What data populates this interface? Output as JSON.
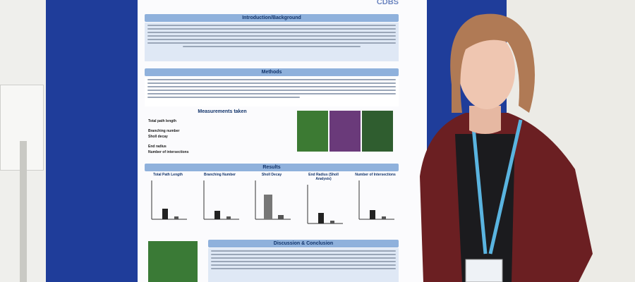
{
  "poster": {
    "logo": "CDBS",
    "sections": {
      "intro": "Introduction/Background",
      "methods": "Methods",
      "results": "Results",
      "discussion": "Discussion & Conclusion"
    },
    "measurements": {
      "title": "Measurements taken",
      "items": [
        "Total path length",
        "Branching number",
        "Sholl decay",
        "End radius",
        "Number of intersections"
      ]
    },
    "charts": [
      "Total Path Length",
      "Branching Number",
      "Sholl Decay",
      "End Radius (Sholl Analysis)",
      "Number of Intersections"
    ]
  }
}
